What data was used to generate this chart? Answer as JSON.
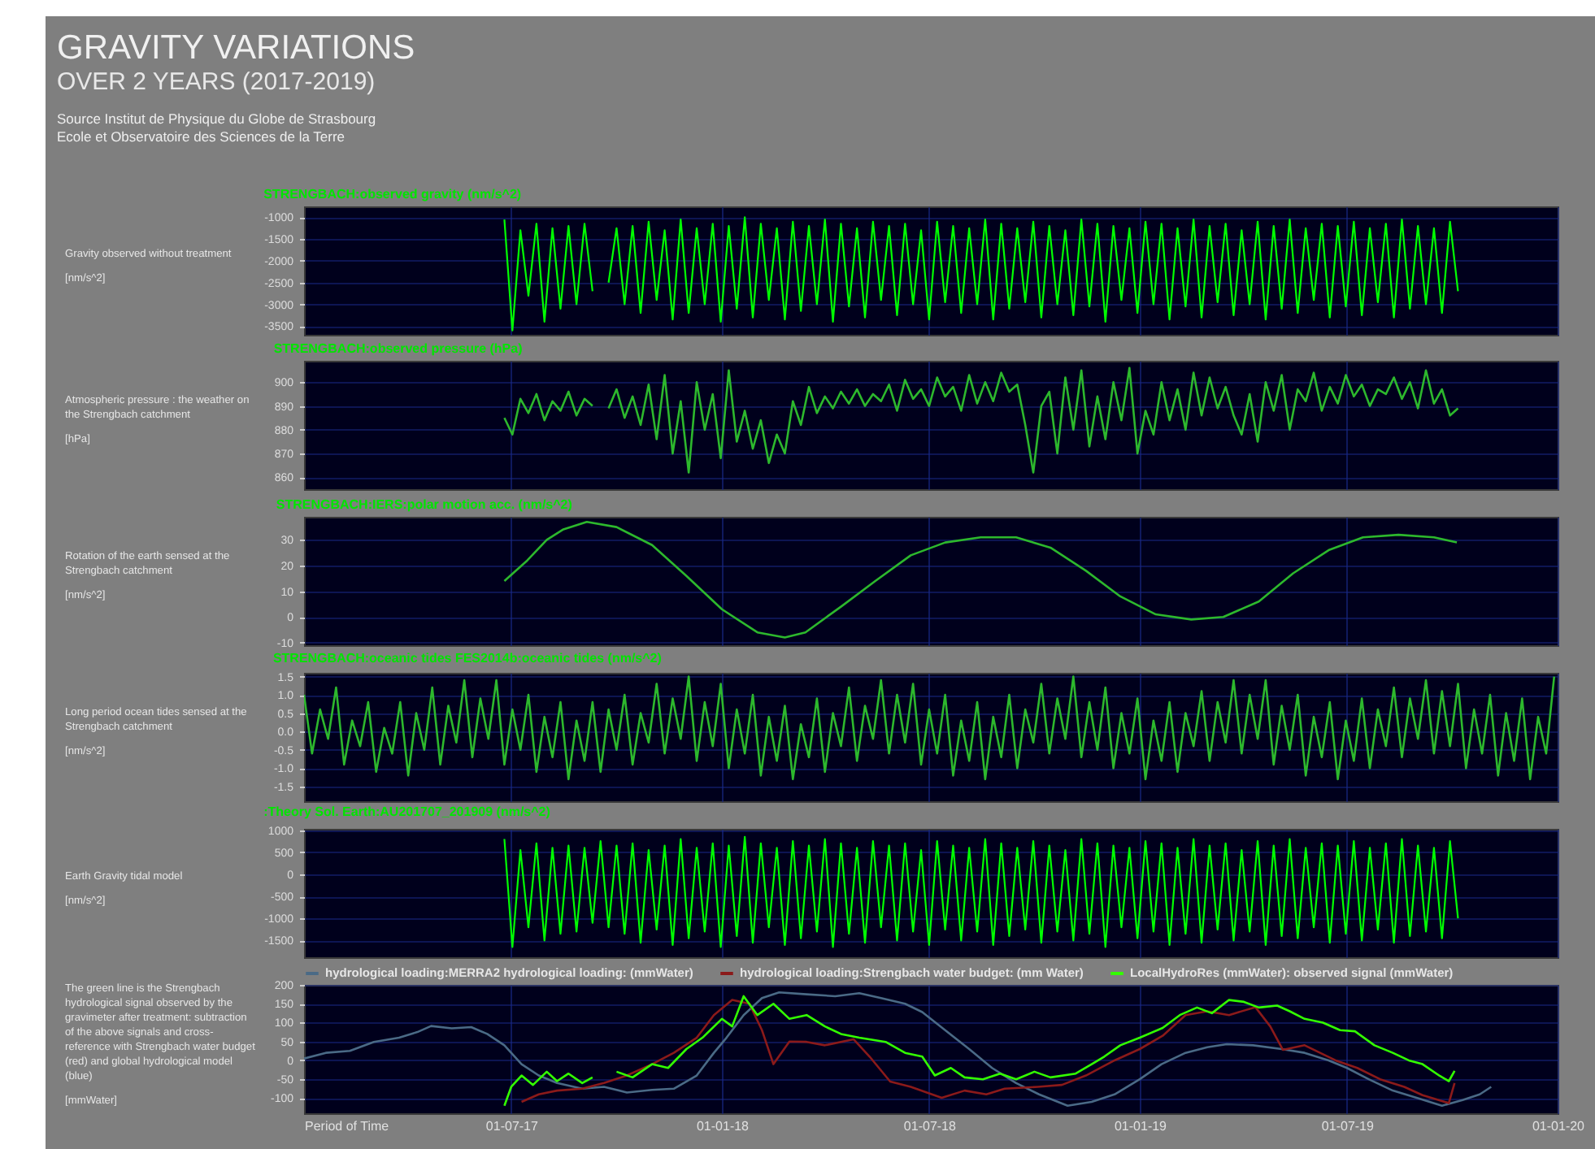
{
  "chart_data": [
    {
      "type": "other",
      "title": "GRAVITY VARIATIONS",
      "subtitle": "OVER 2 YEARS (2017-2019)",
      "annotations": [
        "Source Institut de Physique du Globe de Strasbourg",
        "Ecole et Observatoire des Sciences de la Terre"
      ]
    },
    {
      "type": "line",
      "title": "STRENGBACH:observed gravity (nm/s^2)",
      "annotations": [
        "Gravity observed without treatment",
        "[nm/s^2]"
      ],
      "grid": true,
      "tick_labels": "y",
      "xlim": [
        "2017-01-01",
        "2020-01-01"
      ],
      "xticks": [
        {
          "value": "2017-07-01",
          "label": null
        },
        {
          "value": "2018-01-01",
          "label": null
        },
        {
          "value": "2018-07-01",
          "label": null
        },
        {
          "value": "2019-01-01",
          "label": null
        },
        {
          "value": "2019-07-01",
          "label": null
        },
        {
          "value": "2020-01-01",
          "label": null
        }
      ],
      "ylim": [
        -3700,
        -750
      ],
      "yticks": [
        -1000,
        -1500,
        -2000,
        -2500,
        -3000,
        -3500
      ],
      "series": [
        {
          "color": "#00ff00",
          "x": [
            "2017-06-25",
            "2017-07-02",
            "2017-07-09",
            "2017-07-16",
            "2017-07-23",
            "2017-07-30",
            "2017-08-06",
            "2017-08-13",
            "2017-08-20",
            "2017-08-27",
            "2017-09-03",
            "2017-09-10",
            "2017-09-17",
            "2017-09-24",
            "2017-10-01",
            "2017-10-08",
            "2017-10-15",
            "2017-10-22",
            "2017-10-29",
            "2017-11-05",
            "2017-11-12",
            "2017-11-19",
            "2017-11-26",
            "2017-12-03",
            "2017-12-10",
            "2017-12-17",
            "2017-12-24",
            "2017-12-31",
            "2018-01-07",
            "2018-01-14",
            "2018-01-21",
            "2018-01-28",
            "2018-02-04",
            "2018-02-11",
            "2018-02-18",
            "2018-02-25",
            "2018-03-04",
            "2018-03-11",
            "2018-03-18",
            "2018-03-25",
            "2018-04-01",
            "2018-04-08",
            "2018-04-15",
            "2018-04-22",
            "2018-04-29",
            "2018-05-06",
            "2018-05-13",
            "2018-05-20",
            "2018-05-27",
            "2018-06-03",
            "2018-06-10",
            "2018-06-17",
            "2018-06-24",
            "2018-07-01",
            "2018-07-08",
            "2018-07-15",
            "2018-07-22",
            "2018-07-29",
            "2018-08-05",
            "2018-08-12",
            "2018-08-19",
            "2018-08-26",
            "2018-09-02",
            "2018-09-09",
            "2018-09-16",
            "2018-09-23",
            "2018-09-30",
            "2018-10-07",
            "2018-10-14",
            "2018-10-21",
            "2018-10-28",
            "2018-11-04",
            "2018-11-11",
            "2018-11-18",
            "2018-11-25",
            "2018-12-02",
            "2018-12-09",
            "2018-12-16",
            "2018-12-23",
            "2018-12-30",
            "2019-01-06",
            "2019-01-13",
            "2019-01-20",
            "2019-01-27",
            "2019-02-03",
            "2019-02-10",
            "2019-02-17",
            "2019-02-24",
            "2019-03-03",
            "2019-03-10",
            "2019-03-17",
            "2019-03-24",
            "2019-03-31",
            "2019-04-07",
            "2019-04-14",
            "2019-04-21",
            "2019-04-28",
            "2019-05-05",
            "2019-05-12",
            "2019-05-19",
            "2019-05-26",
            "2019-06-02",
            "2019-06-09",
            "2019-06-16",
            "2019-06-23",
            "2019-06-30",
            "2019-07-07",
            "2019-07-14",
            "2019-07-21",
            "2019-07-28",
            "2019-08-04",
            "2019-08-11",
            "2019-08-18",
            "2019-08-25",
            "2019-09-01",
            "2019-09-08",
            "2019-09-15",
            "2019-09-22",
            "2019-09-29",
            "2019-10-06"
          ],
          "values": [
            -1050,
            -3600,
            -1300,
            -2800,
            -1150,
            -3400,
            -1250,
            -3100,
            -1200,
            -3000,
            -1150,
            -2700,
            null,
            -2500,
            -1250,
            -3000,
            -1200,
            -3200,
            -1100,
            -2900,
            -1300,
            -3350,
            -1050,
            -3200,
            -1250,
            -3000,
            -1150,
            -3400,
            -1200,
            -3100,
            -1000,
            -3300,
            -1150,
            -2900,
            -1250,
            -3350,
            -1100,
            -3150,
            -1200,
            -3000,
            -1050,
            -3400,
            -1150,
            -3050,
            -1250,
            -3300,
            -1100,
            -2900,
            -1200,
            -3250,
            -1150,
            -3000,
            -1300,
            -3350,
            -1100,
            -2950,
            -1200,
            -3200,
            -1250,
            -3000,
            -1050,
            -3350,
            -1150,
            -3100,
            -1250,
            -2950,
            -1100,
            -3300,
            -1200,
            -3000,
            -1300,
            -3250,
            -1050,
            -3050,
            -1150,
            -3400,
            -1200,
            -2900,
            -1250,
            -3200,
            -1100,
            -3000,
            -1150,
            -3350,
            -1250,
            -3050,
            -1050,
            -3300,
            -1200,
            -2950,
            -1150,
            -3250,
            -1300,
            -3000,
            -1100,
            -3350,
            -1200,
            -3100,
            -1050,
            -3200,
            -1250,
            -2900,
            -1150,
            -3300,
            -1200,
            -3050,
            -1100,
            -3250,
            -1250,
            -2950,
            -1150,
            -3300,
            -1050,
            -3100,
            -1200,
            -3000,
            -1250,
            -3200,
            -1100,
            -2700
          ]
        }
      ]
    },
    {
      "type": "line",
      "title": "STRENGBACH:observed pressure (hPa)",
      "annotations": [
        "Atmospheric pressure : the weather on the Strengbach catchment",
        "[hPa]"
      ],
      "grid": true,
      "tick_labels": "y",
      "xlim": [
        "2017-01-01",
        "2020-01-01"
      ],
      "xticks": [
        {
          "value": "2017-07-01",
          "label": null
        },
        {
          "value": "2018-01-01",
          "label": null
        },
        {
          "value": "2018-07-01",
          "label": null
        },
        {
          "value": "2019-01-01",
          "label": null
        },
        {
          "value": "2019-07-01",
          "label": null
        },
        {
          "value": "2020-01-01",
          "label": null
        }
      ],
      "ylim": [
        855,
        909
      ],
      "yticks": [
        900,
        890,
        880,
        870,
        860
      ],
      "series": [
        {
          "color": "#2db82d",
          "x": [
            "2017-06-25",
            "2017-07-02",
            "2017-07-09",
            "2017-07-16",
            "2017-07-23",
            "2017-07-30",
            "2017-08-06",
            "2017-08-13",
            "2017-08-20",
            "2017-08-27",
            "2017-09-03",
            "2017-09-10",
            "2017-09-17",
            "2017-09-24",
            "2017-10-01",
            "2017-10-08",
            "2017-10-15",
            "2017-10-22",
            "2017-10-29",
            "2017-11-05",
            "2017-11-12",
            "2017-11-19",
            "2017-11-26",
            "2017-12-03",
            "2017-12-10",
            "2017-12-17",
            "2017-12-24",
            "2017-12-31",
            "2018-01-07",
            "2018-01-14",
            "2018-01-21",
            "2018-01-28",
            "2018-02-04",
            "2018-02-11",
            "2018-02-18",
            "2018-02-25",
            "2018-03-04",
            "2018-03-11",
            "2018-03-18",
            "2018-03-25",
            "2018-04-01",
            "2018-04-08",
            "2018-04-15",
            "2018-04-22",
            "2018-04-29",
            "2018-05-06",
            "2018-05-13",
            "2018-05-20",
            "2018-05-27",
            "2018-06-03",
            "2018-06-10",
            "2018-06-17",
            "2018-06-24",
            "2018-07-01",
            "2018-07-08",
            "2018-07-15",
            "2018-07-22",
            "2018-07-29",
            "2018-08-05",
            "2018-08-12",
            "2018-08-19",
            "2018-08-26",
            "2018-09-02",
            "2018-09-09",
            "2018-09-16",
            "2018-09-23",
            "2018-09-30",
            "2018-10-07",
            "2018-10-14",
            "2018-10-21",
            "2018-10-28",
            "2018-11-04",
            "2018-11-11",
            "2018-11-18",
            "2018-11-25",
            "2018-12-02",
            "2018-12-09",
            "2018-12-16",
            "2018-12-23",
            "2018-12-30",
            "2019-01-06",
            "2019-01-13",
            "2019-01-20",
            "2019-01-27",
            "2019-02-03",
            "2019-02-10",
            "2019-02-17",
            "2019-02-24",
            "2019-03-03",
            "2019-03-10",
            "2019-03-17",
            "2019-03-24",
            "2019-03-31",
            "2019-04-07",
            "2019-04-14",
            "2019-04-21",
            "2019-04-28",
            "2019-05-05",
            "2019-05-12",
            "2019-05-19",
            "2019-05-26",
            "2019-06-02",
            "2019-06-09",
            "2019-06-16",
            "2019-06-23",
            "2019-06-30",
            "2019-07-07",
            "2019-07-14",
            "2019-07-21",
            "2019-07-28",
            "2019-08-04",
            "2019-08-11",
            "2019-08-18",
            "2019-08-25",
            "2019-09-01",
            "2019-09-08",
            "2019-09-15",
            "2019-09-22",
            "2019-09-29",
            "2019-10-06"
          ],
          "values": [
            885,
            878,
            893,
            887,
            895,
            884,
            892,
            888,
            896,
            886,
            893,
            890,
            null,
            889,
            897,
            885,
            894,
            882,
            899,
            876,
            903,
            870,
            892,
            862,
            900,
            880,
            895,
            868,
            905,
            875,
            888,
            872,
            884,
            866,
            878,
            870,
            892,
            882,
            898,
            887,
            894,
            889,
            896,
            891,
            897,
            890,
            895,
            892,
            899,
            888,
            901,
            893,
            897,
            890,
            902,
            894,
            898,
            888,
            903,
            891,
            900,
            892,
            904,
            896,
            899,
            882,
            862,
            890,
            896,
            870,
            902,
            880,
            905,
            873,
            894,
            876,
            900,
            884,
            906,
            870,
            888,
            878,
            900,
            884,
            897,
            880,
            904,
            886,
            902,
            889,
            898,
            886,
            878,
            895,
            875,
            900,
            888,
            903,
            880,
            897,
            892,
            904,
            888,
            898,
            891,
            903,
            894,
            899,
            890,
            897,
            895,
            902,
            893,
            900,
            889,
            905,
            891,
            897,
            886,
            889
          ]
        }
      ]
    },
    {
      "type": "line",
      "title": "STRENGBACH:IERS:polar motion acc. (nm/s^2)",
      "annotations": [
        "Rotation of the earth sensed at the Strengbach catchment",
        "[nm/s^2]"
      ],
      "grid": true,
      "tick_labels": "y",
      "xlim": [
        "2017-01-01",
        "2020-01-01"
      ],
      "xticks": [
        {
          "value": "2017-07-01",
          "label": null
        },
        {
          "value": "2018-01-01",
          "label": null
        },
        {
          "value": "2018-07-01",
          "label": null
        },
        {
          "value": "2019-01-01",
          "label": null
        },
        {
          "value": "2019-07-01",
          "label": null
        },
        {
          "value": "2020-01-01",
          "label": null
        }
      ],
      "ylim": [
        -11,
        39
      ],
      "yticks": [
        30,
        20,
        10,
        0,
        -10
      ],
      "series": [
        {
          "color": "#2db82d",
          "x": [
            "2017-06-25",
            "2017-07-15",
            "2017-08-01",
            "2017-08-15",
            "2017-09-05",
            "2017-10-01",
            "2017-11-01",
            "2017-12-01",
            "2018-01-01",
            "2018-02-01",
            "2018-02-25",
            "2018-03-15",
            "2018-04-15",
            "2018-05-15",
            "2018-06-15",
            "2018-07-15",
            "2018-08-15",
            "2018-09-15",
            "2018-10-15",
            "2018-11-15",
            "2018-12-15",
            "2019-01-15",
            "2019-02-15",
            "2019-03-15",
            "2019-04-15",
            "2019-05-15",
            "2019-06-15",
            "2019-07-15",
            "2019-08-15",
            "2019-09-15",
            "2019-10-05"
          ],
          "values": [
            14,
            22,
            30,
            34,
            37,
            35,
            28,
            16,
            3,
            -6,
            -8,
            -6,
            4,
            14,
            24,
            29,
            31,
            31,
            27,
            18,
            8,
            1,
            -1,
            0,
            6,
            17,
            26,
            31,
            32,
            31,
            29
          ]
        }
      ]
    },
    {
      "type": "line",
      "title": "STRENGBACH:oceanic tides FES2014b:oceanic tides (nm/s^2)",
      "annotations": [
        "Long period ocean tides sensed at the Strengbach catchment",
        "[nm/s^2]"
      ],
      "grid": true,
      "tick_labels": "y",
      "xlim": [
        "2017-01-01",
        "2020-01-01"
      ],
      "xticks": [
        {
          "value": "2017-07-01",
          "label": null
        },
        {
          "value": "2018-01-01",
          "label": null
        },
        {
          "value": "2018-07-01",
          "label": null
        },
        {
          "value": "2019-01-01",
          "label": null
        },
        {
          "value": "2019-07-01",
          "label": null
        },
        {
          "value": "2020-01-01",
          "label": null
        }
      ],
      "ylim": [
        -1.9,
        1.6
      ],
      "yticks": [
        {
          "value": 1.5,
          "label": "1.5"
        },
        {
          "value": 1,
          "label": "1.0"
        },
        {
          "value": 0.5,
          "label": "0.5"
        },
        {
          "value": 0,
          "label": "0.0"
        },
        {
          "value": -0.5,
          "label": "-0.5"
        },
        {
          "value": -1,
          "label": "-1.0"
        },
        {
          "value": -1.5,
          "label": "-1.5"
        }
      ],
      "series": [
        {
          "color": "#2db82d",
          "x": [
            "2017-01-01",
            "2017-01-08",
            "2017-01-15",
            "2017-01-22",
            "2017-01-29",
            "2017-02-05",
            "2017-02-12",
            "2017-02-19",
            "2017-02-26",
            "2017-03-05",
            "2017-03-12",
            "2017-03-19",
            "2017-03-26",
            "2017-04-02",
            "2017-04-09",
            "2017-04-16",
            "2017-04-23",
            "2017-04-30",
            "2017-05-07",
            "2017-05-14",
            "2017-05-21",
            "2017-05-28",
            "2017-06-04",
            "2017-06-11",
            "2017-06-18",
            "2017-06-25",
            "2017-07-02",
            "2017-07-09",
            "2017-07-16",
            "2017-07-23",
            "2017-07-30",
            "2017-08-06",
            "2017-08-13",
            "2017-08-20",
            "2017-08-27",
            "2017-09-03",
            "2017-09-10",
            "2017-09-17",
            "2017-09-24",
            "2017-10-01",
            "2017-10-08",
            "2017-10-15",
            "2017-10-22",
            "2017-10-29",
            "2017-11-05",
            "2017-11-12",
            "2017-11-19",
            "2017-11-26",
            "2017-12-03",
            "2017-12-10",
            "2017-12-17",
            "2017-12-24",
            "2017-12-31",
            "2018-01-07",
            "2018-01-14",
            "2018-01-21",
            "2018-01-28",
            "2018-02-04",
            "2018-02-11",
            "2018-02-18",
            "2018-02-25",
            "2018-03-04",
            "2018-03-11",
            "2018-03-18",
            "2018-03-25",
            "2018-04-01",
            "2018-04-08",
            "2018-04-15",
            "2018-04-22",
            "2018-04-29",
            "2018-05-06",
            "2018-05-13",
            "2018-05-20",
            "2018-05-27",
            "2018-06-03",
            "2018-06-10",
            "2018-06-17",
            "2018-06-24",
            "2018-07-01",
            "2018-07-08",
            "2018-07-15",
            "2018-07-22",
            "2018-07-29",
            "2018-08-05",
            "2018-08-12",
            "2018-08-19",
            "2018-08-26",
            "2018-09-02",
            "2018-09-09",
            "2018-09-16",
            "2018-09-23",
            "2018-09-30",
            "2018-10-07",
            "2018-10-14",
            "2018-10-21",
            "2018-10-28",
            "2018-11-04",
            "2018-11-11",
            "2018-11-18",
            "2018-11-25",
            "2018-12-02",
            "2018-12-09",
            "2018-12-16",
            "2018-12-23",
            "2018-12-30",
            "2019-01-06",
            "2019-01-13",
            "2019-01-20",
            "2019-01-27",
            "2019-02-03",
            "2019-02-10",
            "2019-02-17",
            "2019-02-24",
            "2019-03-03",
            "2019-03-10",
            "2019-03-17",
            "2019-03-24",
            "2019-03-31",
            "2019-04-07",
            "2019-04-14",
            "2019-04-21",
            "2019-04-28",
            "2019-05-05",
            "2019-05-12",
            "2019-05-19",
            "2019-05-26",
            "2019-06-02",
            "2019-06-09",
            "2019-06-16",
            "2019-06-23",
            "2019-06-30",
            "2019-07-07",
            "2019-07-14",
            "2019-07-21",
            "2019-07-28",
            "2019-08-04",
            "2019-08-11",
            "2019-08-18",
            "2019-08-25",
            "2019-09-01",
            "2019-09-08",
            "2019-09-15",
            "2019-09-22",
            "2019-09-29",
            "2019-10-06",
            "2019-10-13",
            "2019-10-20",
            "2019-10-27",
            "2019-11-03",
            "2019-11-10",
            "2019-11-17",
            "2019-11-24",
            "2019-12-01",
            "2019-12-08",
            "2019-12-15",
            "2019-12-22",
            "2019-12-29"
          ],
          "values": [
            1.0,
            -0.6,
            0.6,
            -0.2,
            1.2,
            -0.9,
            0.3,
            -0.4,
            0.8,
            -1.1,
            0.1,
            -0.6,
            0.8,
            -1.2,
            0.5,
            -0.5,
            1.2,
            -0.9,
            0.7,
            -0.3,
            1.4,
            -0.7,
            0.9,
            -0.2,
            1.4,
            -0.9,
            0.6,
            -0.5,
            1.0,
            -1.1,
            0.4,
            -0.7,
            0.8,
            -1.3,
            0.3,
            -0.8,
            0.8,
            -1.1,
            0.6,
            -0.5,
            1.0,
            -0.9,
            0.5,
            -0.3,
            1.3,
            -0.6,
            0.9,
            -0.2,
            1.5,
            -0.8,
            0.8,
            -0.4,
            1.3,
            -1.0,
            0.6,
            -0.6,
            1.0,
            -1.2,
            0.4,
            -0.8,
            0.7,
            -1.3,
            0.2,
            -0.7,
            0.9,
            -1.1,
            0.5,
            -0.4,
            1.2,
            -0.8,
            0.7,
            -0.2,
            1.4,
            -0.6,
            1.0,
            -0.3,
            1.3,
            -0.9,
            0.6,
            -0.6,
            1.0,
            -1.2,
            0.3,
            -0.8,
            0.8,
            -1.3,
            0.4,
            -0.7,
            1.0,
            -1.0,
            0.6,
            -0.3,
            1.3,
            -0.6,
            0.9,
            -0.2,
            1.5,
            -0.7,
            0.8,
            -0.5,
            1.2,
            -1.0,
            0.5,
            -0.6,
            0.9,
            -1.3,
            0.3,
            -0.8,
            0.8,
            -1.1,
            0.5,
            -0.4,
            1.1,
            -0.8,
            0.8,
            -0.3,
            1.4,
            -0.6,
            1.0,
            -0.2,
            1.4,
            -0.9,
            0.7,
            -0.5,
            1.0,
            -1.2,
            0.4,
            -0.7,
            0.8,
            -1.3,
            0.3,
            -0.8,
            0.9,
            -1.0,
            0.6,
            -0.4,
            1.2,
            -0.7,
            0.9,
            -0.2,
            1.4,
            -0.6,
            1.1,
            -0.4,
            1.3,
            -1.0,
            0.6,
            -0.6,
            1.0,
            -1.2,
            0.5,
            -0.8,
            0.9,
            -1.3,
            0.4,
            -0.6,
            1.5
          ]
        }
      ]
    },
    {
      "type": "line",
      "title": ":Theory Sol. Earth:AU201707_201909 (nm/s^2)",
      "annotations": [
        "Earth Gravity tidal model",
        "[nm/s^2]"
      ],
      "grid": true,
      "tick_labels": "y",
      "xlim": [
        "2017-01-01",
        "2020-01-01"
      ],
      "xticks": [
        {
          "value": "2017-07-01",
          "label": null
        },
        {
          "value": "2018-01-01",
          "label": null
        },
        {
          "value": "2018-07-01",
          "label": null
        },
        {
          "value": "2019-01-01",
          "label": null
        },
        {
          "value": "2019-07-01",
          "label": null
        },
        {
          "value": "2020-01-01",
          "label": null
        }
      ],
      "ylim": [
        -1880,
        1030
      ],
      "yticks": [
        1000,
        500,
        0,
        -500,
        -1000,
        -1500
      ],
      "series": [
        {
          "color": "#00ff00",
          "x": [
            "2017-06-25",
            "2017-07-02",
            "2017-07-09",
            "2017-07-16",
            "2017-07-23",
            "2017-07-30",
            "2017-08-06",
            "2017-08-13",
            "2017-08-20",
            "2017-08-27",
            "2017-09-03",
            "2017-09-10",
            "2017-09-17",
            "2017-09-24",
            "2017-10-01",
            "2017-10-08",
            "2017-10-15",
            "2017-10-22",
            "2017-10-29",
            "2017-11-05",
            "2017-11-12",
            "2017-11-19",
            "2017-11-26",
            "2017-12-03",
            "2017-12-10",
            "2017-12-17",
            "2017-12-24",
            "2017-12-31",
            "2018-01-07",
            "2018-01-14",
            "2018-01-21",
            "2018-01-28",
            "2018-02-04",
            "2018-02-11",
            "2018-02-18",
            "2018-02-25",
            "2018-03-04",
            "2018-03-11",
            "2018-03-18",
            "2018-03-25",
            "2018-04-01",
            "2018-04-08",
            "2018-04-15",
            "2018-04-22",
            "2018-04-29",
            "2018-05-06",
            "2018-05-13",
            "2018-05-20",
            "2018-05-27",
            "2018-06-03",
            "2018-06-10",
            "2018-06-17",
            "2018-06-24",
            "2018-07-01",
            "2018-07-08",
            "2018-07-15",
            "2018-07-22",
            "2018-07-29",
            "2018-08-05",
            "2018-08-12",
            "2018-08-19",
            "2018-08-26",
            "2018-09-02",
            "2018-09-09",
            "2018-09-16",
            "2018-09-23",
            "2018-09-30",
            "2018-10-07",
            "2018-10-14",
            "2018-10-21",
            "2018-10-28",
            "2018-11-04",
            "2018-11-11",
            "2018-11-18",
            "2018-11-25",
            "2018-12-02",
            "2018-12-09",
            "2018-12-16",
            "2018-12-23",
            "2018-12-30",
            "2019-01-06",
            "2019-01-13",
            "2019-01-20",
            "2019-01-27",
            "2019-02-03",
            "2019-02-10",
            "2019-02-17",
            "2019-02-24",
            "2019-03-03",
            "2019-03-10",
            "2019-03-17",
            "2019-03-24",
            "2019-03-31",
            "2019-04-07",
            "2019-04-14",
            "2019-04-21",
            "2019-04-28",
            "2019-05-05",
            "2019-05-12",
            "2019-05-19",
            "2019-05-26",
            "2019-06-02",
            "2019-06-09",
            "2019-06-16",
            "2019-06-23",
            "2019-06-30",
            "2019-07-07",
            "2019-07-14",
            "2019-07-21",
            "2019-07-28",
            "2019-08-04",
            "2019-08-11",
            "2019-08-18",
            "2019-08-25",
            "2019-09-01",
            "2019-09-08",
            "2019-09-15",
            "2019-09-22",
            "2019-09-29",
            "2019-10-06"
          ],
          "values": [
            800,
            -1650,
            550,
            -1200,
            700,
            -1500,
            600,
            -1350,
            650,
            -1300,
            600,
            -1100,
            750,
            -1200,
            650,
            -1350,
            700,
            -1550,
            550,
            -1250,
            650,
            -1600,
            800,
            -1450,
            600,
            -1300,
            700,
            -1650,
            650,
            -1400,
            850,
            -1550,
            700,
            -1200,
            600,
            -1600,
            750,
            -1450,
            650,
            -1300,
            800,
            -1650,
            700,
            -1350,
            600,
            -1550,
            750,
            -1200,
            650,
            -1500,
            700,
            -1300,
            550,
            -1600,
            750,
            -1250,
            650,
            -1500,
            600,
            -1300,
            800,
            -1600,
            700,
            -1400,
            600,
            -1250,
            750,
            -1550,
            650,
            -1300,
            550,
            -1500,
            800,
            -1350,
            700,
            -1650,
            650,
            -1200,
            600,
            -1450,
            750,
            -1300,
            700,
            -1600,
            600,
            -1350,
            800,
            -1550,
            650,
            -1250,
            700,
            -1500,
            550,
            -1300,
            750,
            -1600,
            650,
            -1400,
            800,
            -1450,
            600,
            -1200,
            700,
            -1550,
            650,
            -1350,
            750,
            -1500,
            600,
            -1250,
            700,
            -1550,
            800,
            -1400,
            650,
            -1300,
            600,
            -1450,
            750,
            -1000
          ]
        }
      ]
    },
    {
      "type": "line",
      "xlabel": "Period of Time",
      "annotations": [
        "The green line is the Strengbach hydrological signal observed by the gravimeter after treatment: subtraction of the above signals and cross-reference with Strengbach water budget (red) and global hydrological model (blue)",
        "[mmWater]"
      ],
      "grid": true,
      "legend": "top",
      "xlim": [
        "2017-01-01",
        "2020-01-01"
      ],
      "xticks": [
        {
          "value": "2017-07-01",
          "label": "01-07-17"
        },
        {
          "value": "2018-01-01",
          "label": "01-01-18"
        },
        {
          "value": "2018-07-01",
          "label": "01-07-18"
        },
        {
          "value": "2019-01-01",
          "label": "01-01-19"
        },
        {
          "value": "2019-07-01",
          "label": "01-07-19"
        },
        {
          "value": "2020-01-01",
          "label": "01-01-20"
        }
      ],
      "ylim": [
        -140,
        200
      ],
      "yticks": [
        200,
        150,
        100,
        50,
        0,
        -50,
        -100
      ],
      "series": [
        {
          "name": "hydrological loading:MERRA2 hydrological loading: (mmWater)",
          "color": "#4a6a86",
          "x": [
            "2017-01-01",
            "2017-01-20",
            "2017-02-10",
            "2017-03-03",
            "2017-03-25",
            "2017-04-10",
            "2017-04-22",
            "2017-05-10",
            "2017-05-27",
            "2017-06-10",
            "2017-06-25",
            "2017-07-10",
            "2017-07-25",
            "2017-08-10",
            "2017-09-01",
            "2017-09-20",
            "2017-10-10",
            "2017-11-01",
            "2017-11-20",
            "2017-12-10",
            "2017-12-25",
            "2018-01-05",
            "2018-01-20",
            "2018-02-05",
            "2018-02-20",
            "2018-03-16",
            "2018-04-10",
            "2018-05-01",
            "2018-05-20",
            "2018-06-10",
            "2018-06-25",
            "2018-07-15",
            "2018-08-05",
            "2018-08-25",
            "2018-09-15",
            "2018-10-05",
            "2018-10-30",
            "2018-11-20",
            "2018-12-10",
            "2019-01-01",
            "2019-01-20",
            "2019-02-10",
            "2019-03-01",
            "2019-03-18",
            "2019-04-10",
            "2019-05-05",
            "2019-05-25",
            "2019-06-15",
            "2019-07-01",
            "2019-07-20",
            "2019-08-10",
            "2019-09-01",
            "2019-09-22",
            "2019-10-10",
            "2019-10-25",
            "2019-11-04"
          ],
          "values": [
            5,
            20,
            25,
            49,
            60,
            75,
            91,
            85,
            88,
            70,
            40,
            -10,
            -40,
            -60,
            -75,
            -70,
            -85,
            -78,
            -75,
            -40,
            20,
            60,
            120,
            165,
            180,
            175,
            170,
            178,
            165,
            150,
            128,
            80,
            30,
            -20,
            -60,
            -90,
            -120,
            -110,
            -90,
            -50,
            -10,
            20,
            35,
            43,
            40,
            30,
            20,
            0,
            -20,
            -50,
            -80,
            -100,
            -120,
            -105,
            -90,
            -70
          ]
        },
        {
          "name": "hydrological loading:Strengbach water budget: (mm Water)",
          "color": "#8b1a1a",
          "x": [
            "2017-07-10",
            "2017-07-25",
            "2017-08-10",
            "2017-09-01",
            "2017-09-20",
            "2017-10-10",
            "2017-11-01",
            "2017-11-20",
            "2017-12-10",
            "2017-12-25",
            "2018-01-10",
            "2018-01-25",
            "2018-02-05",
            "2018-02-15",
            "2018-03-01",
            "2018-03-16",
            "2018-04-01",
            "2018-04-26",
            "2018-05-10",
            "2018-05-28",
            "2018-06-15",
            "2018-07-12",
            "2018-08-01",
            "2018-08-20",
            "2018-09-05",
            "2018-10-04",
            "2018-10-25",
            "2018-11-15",
            "2018-12-10",
            "2019-01-01",
            "2019-01-21",
            "2019-02-10",
            "2019-03-01",
            "2019-03-20",
            "2019-04-12",
            "2019-04-25",
            "2019-05-06",
            "2019-05-25",
            "2019-06-21",
            "2019-07-10",
            "2019-07-30",
            "2019-08-20",
            "2019-09-05",
            "2019-09-28",
            "2019-10-03"
          ],
          "values": [
            -110,
            -90,
            -80,
            -75,
            -60,
            -40,
            -10,
            20,
            60,
            120,
            160,
            150,
            80,
            -10,
            50,
            49,
            40,
            56,
            10,
            -56,
            -70,
            -99,
            -80,
            -90,
            -75,
            -70,
            -65,
            -40,
            0,
            30,
            65,
            120,
            130,
            120,
            141,
            90,
            28,
            40,
            0,
            -20,
            -50,
            -70,
            -92,
            -113,
            -60
          ]
        },
        {
          "name": "LocalHydroRes (mmWater): observed signal (mmWater)",
          "color": "#33ff00",
          "x": [
            "2017-06-25",
            "2017-07-01",
            "2017-07-10",
            "2017-07-20",
            "2017-08-01",
            "2017-08-10",
            "2017-08-20",
            "2017-09-01",
            "2017-09-10",
            "2017-09-15",
            "2017-10-01",
            "2017-10-15",
            "2017-11-01",
            "2017-11-15",
            "2017-12-01",
            "2017-12-15",
            "2018-01-01",
            "2018-01-10",
            "2018-01-20",
            "2018-02-01",
            "2018-02-15",
            "2018-03-01",
            "2018-03-16",
            "2018-04-01",
            "2018-04-15",
            "2018-05-01",
            "2018-05-24",
            "2018-06-10",
            "2018-06-25",
            "2018-07-06",
            "2018-07-20",
            "2018-08-01",
            "2018-08-17",
            "2018-09-01",
            "2018-09-15",
            "2018-10-01",
            "2018-10-15",
            "2018-11-06",
            "2018-11-20",
            "2018-12-01",
            "2018-12-15",
            "2019-01-01",
            "2019-01-21",
            "2019-02-05",
            "2019-02-20",
            "2019-03-05",
            "2019-03-20",
            "2019-04-02",
            "2019-04-15",
            "2019-05-01",
            "2019-05-12",
            "2019-05-25",
            "2019-06-10",
            "2019-06-25",
            "2019-07-08",
            "2019-07-25",
            "2019-08-10",
            "2019-08-24",
            "2019-09-05",
            "2019-09-20",
            "2019-09-28",
            "2019-10-03"
          ],
          "values": [
            -120,
            -70,
            -40,
            -65,
            -30,
            -55,
            -35,
            -60,
            -45,
            null,
            -30,
            -45,
            -10,
            -20,
            30,
            60,
            110,
            90,
            170,
            120,
            150,
            110,
            120,
            90,
            70,
            60,
            49,
            20,
            10,
            -40,
            -20,
            -45,
            -50,
            -35,
            -50,
            -30,
            -45,
            -35,
            -10,
            10,
            40,
            60,
            86,
            120,
            140,
            125,
            160,
            155,
            140,
            145,
            130,
            110,
            100,
            80,
            77,
            40,
            20,
            0,
            -10,
            -41,
            -55,
            -28
          ]
        }
      ]
    }
  ]
}
